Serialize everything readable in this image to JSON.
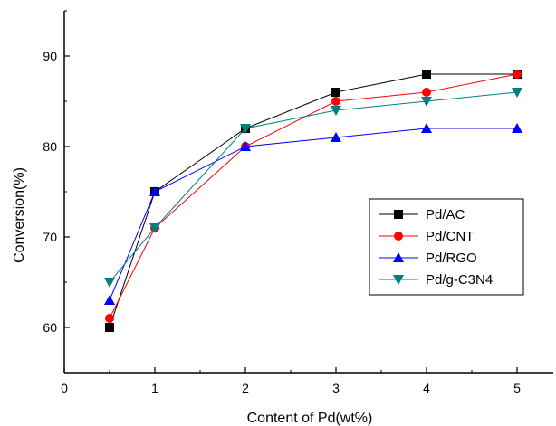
{
  "chart_data": {
    "type": "line",
    "xlabel": "Content of Pd(wt%)",
    "ylabel": "Conversion(%)",
    "xlim": [
      0,
      5.4
    ],
    "ylim": [
      55,
      95
    ],
    "xticks": [
      0,
      1,
      2,
      3,
      4,
      5
    ],
    "yticks": [
      60,
      70,
      80,
      90
    ],
    "x": [
      0.5,
      1,
      2,
      3,
      4,
      5
    ],
    "grid": false,
    "legend_position": "right-middle",
    "series": [
      {
        "name": "Pd/AC",
        "color": "#000000",
        "marker": "square",
        "values": [
          60,
          75,
          82,
          86,
          88,
          88
        ]
      },
      {
        "name": "Pd/CNT",
        "color": "#ff0000",
        "marker": "circle",
        "values": [
          61,
          71,
          80,
          85,
          86,
          88
        ]
      },
      {
        "name": "Pd/RGO",
        "color": "#0000ff",
        "marker": "triangle-up",
        "values": [
          63,
          75,
          80,
          81,
          82,
          82
        ]
      },
      {
        "name": "Pd/g-C3N4",
        "color": "#008080",
        "marker": "triangle-down",
        "values": [
          65,
          71,
          82,
          84,
          85,
          86
        ]
      }
    ]
  }
}
